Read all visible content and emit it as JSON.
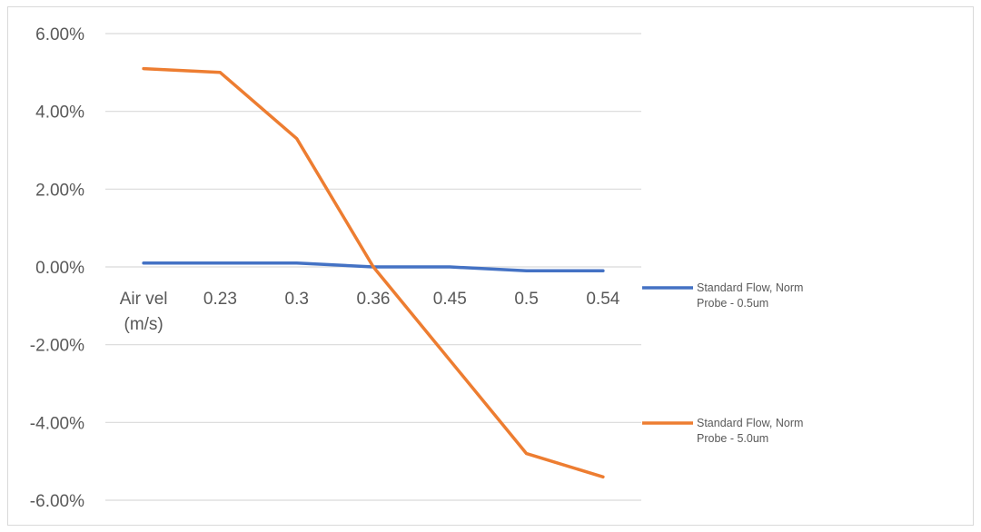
{
  "chart_data": {
    "type": "line",
    "title": "",
    "xlabel": "",
    "ylabel": "",
    "categories": [
      "Air vel (m/s)",
      "0.23",
      "0.3",
      "0.36",
      "0.45",
      "0.5",
      "0.54"
    ],
    "category_label_lines": [
      [
        "Air vel",
        "(m/s)"
      ],
      [
        "0.23"
      ],
      [
        "0.3"
      ],
      [
        "0.36"
      ],
      [
        "0.45"
      ],
      [
        "0.5"
      ],
      [
        "0.54"
      ]
    ],
    "ylim": [
      -6,
      6
    ],
    "yticks": [
      6,
      4,
      2,
      0,
      -2,
      -4,
      -6
    ],
    "ytick_labels": [
      "6.00%",
      "4.00%",
      "2.00%",
      "0.00%",
      "-2.00%",
      "-4.00%",
      "-6.00%"
    ],
    "grid": true,
    "legend_position": "right",
    "series": [
      {
        "name": "Standard Flow, Norm Probe - 0.5um",
        "legend_lines": [
          "Standard Flow, Norm",
          "Probe - 0.5um"
        ],
        "color": "#4472C4",
        "values": [
          0.1,
          0.1,
          0.1,
          0.0,
          0.0,
          -0.1,
          -0.1
        ]
      },
      {
        "name": "Standard Flow, Norm Probe - 5.0um",
        "legend_lines": [
          "Standard Flow, Norm",
          "Probe - 5.0um"
        ],
        "color": "#ED7D31",
        "values": [
          5.1,
          5.0,
          3.3,
          0.0,
          -2.4,
          -4.8,
          -5.4
        ]
      }
    ]
  }
}
